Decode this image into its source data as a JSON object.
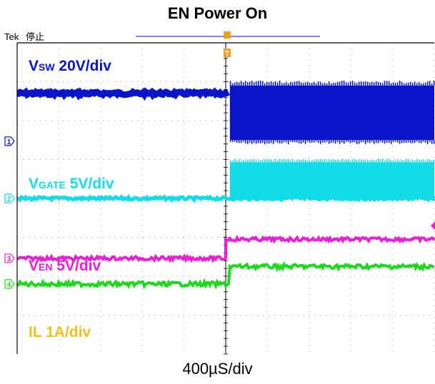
{
  "title": "EN Power On",
  "header": {
    "brand": "Tek",
    "status": "停止"
  },
  "markers": {
    "trigger": "T"
  },
  "chart_data": {
    "type": "line",
    "title": "EN Power On",
    "x_unit": "div",
    "xlim": [
      -5,
      5
    ],
    "ylim": [
      -4,
      4
    ],
    "grid": true,
    "timebase": "400µS/div",
    "channels": [
      {
        "id": "1",
        "name": "Vsw 20V/div",
        "prefix": "V",
        "sub": "SW",
        "suffix": " 20V/div",
        "color": "#0a14c8",
        "ground_div": 1.47,
        "low_div": 2.7,
        "high_low_div": 1.5,
        "high_top_div": 2.9,
        "step_x_div": 0.1
      },
      {
        "id": "2",
        "name": "Vgate 5V/div",
        "prefix": "V",
        "sub": "GATE",
        "suffix": " 5V/div",
        "color": "#12dce8",
        "ground_div": 0.0,
        "low_div": 0.0,
        "high_div": 0.93,
        "step_x_div": 0.1
      },
      {
        "id": "3",
        "name": "Ven 5V/div",
        "prefix": "V",
        "sub": "EN",
        "suffix": " 5V/div",
        "color": "#e822d4",
        "ground_div": -1.54,
        "low_div": -1.54,
        "high_div": -1.05,
        "step_x_div": 0.0
      },
      {
        "id": "4",
        "name": "IL 1A/div",
        "prefix": "IL",
        "sub": "",
        "suffix": " 1A/div",
        "color": "#1ed81e",
        "ground_div": -2.2,
        "low_div": -2.2,
        "high_div": -1.75,
        "step_x_div": 0.1
      }
    ],
    "label_color_il": "#f0c020"
  }
}
